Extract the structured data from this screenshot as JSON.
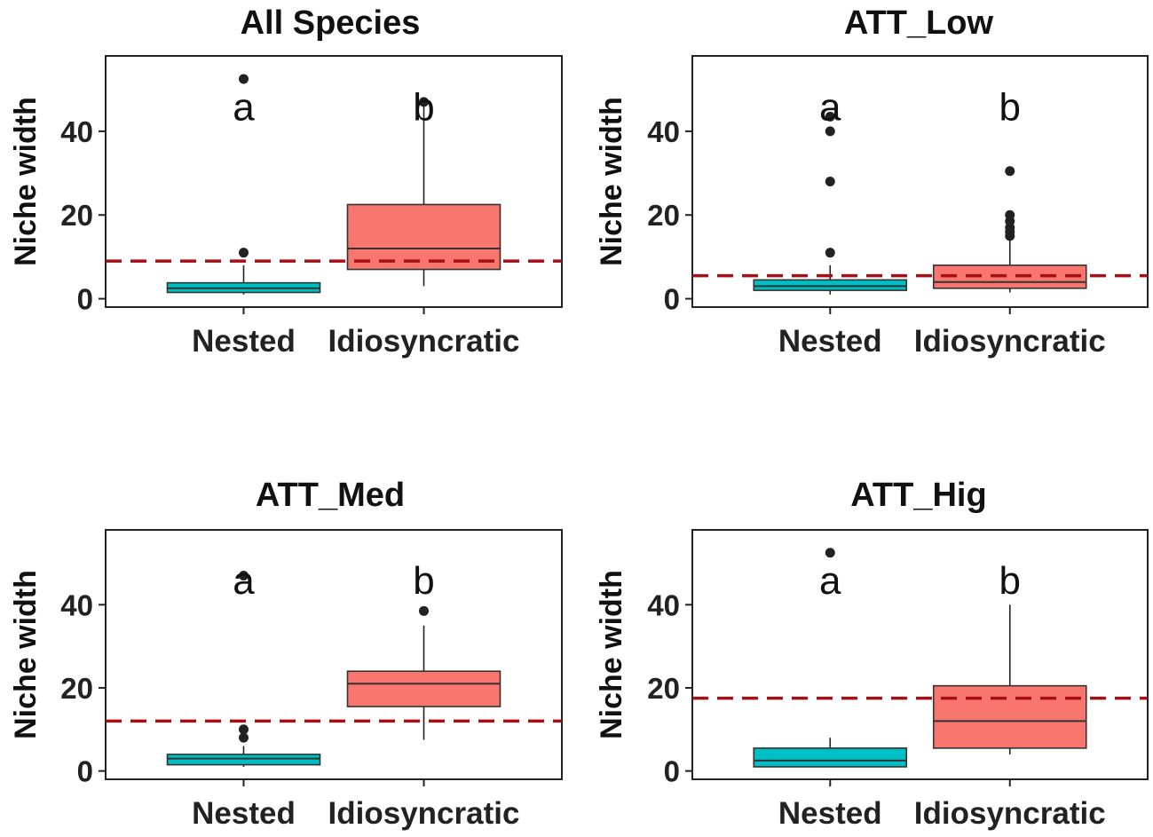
{
  "colors": {
    "nested": "#00BFC4",
    "idiosyncratic": "#F8766D",
    "reference_line": "#A50F15",
    "outline": "#333333"
  },
  "chart_data": [
    {
      "type": "boxplot",
      "title": "All Species",
      "ylabel": "Niche width",
      "xlabel": "",
      "ylim": [
        -2,
        58
      ],
      "yticks": [
        0,
        20,
        40
      ],
      "categories": [
        "Nested",
        "Idiosyncratic"
      ],
      "groups": [
        {
          "name": "Nested",
          "color": "#00BFC4",
          "min": 1,
          "q1": 1.5,
          "median": 2.5,
          "q3": 3.8,
          "max": 8,
          "outliers": [
            11,
            52.5
          ],
          "letter": "a"
        },
        {
          "name": "Idiosyncratic",
          "color": "#F8766D",
          "min": 3,
          "q1": 7,
          "median": 12,
          "q3": 22.5,
          "max": 46,
          "outliers": [
            47
          ],
          "letter": "b"
        }
      ],
      "reference_line": 9
    },
    {
      "type": "boxplot",
      "title": "ATT_Low",
      "ylabel": "Niche width",
      "xlabel": "",
      "ylim": [
        -2,
        58
      ],
      "yticks": [
        0,
        20,
        40
      ],
      "categories": [
        "Nested",
        "Idiosyncratic"
      ],
      "groups": [
        {
          "name": "Nested",
          "color": "#00BFC4",
          "min": 1,
          "q1": 2,
          "median": 3,
          "q3": 4.5,
          "max": 8,
          "outliers": [
            11,
            28,
            40,
            43.5
          ],
          "letter": "a"
        },
        {
          "name": "Idiosyncratic",
          "color": "#F8766D",
          "min": 1.5,
          "q1": 2.5,
          "median": 4,
          "q3": 8,
          "max": 14,
          "outliers": [
            15,
            16,
            17,
            18.5,
            20,
            30.5
          ],
          "letter": "b"
        }
      ],
      "reference_line": 5.5
    },
    {
      "type": "boxplot",
      "title": "ATT_Med",
      "ylabel": "Niche width",
      "xlabel": "",
      "ylim": [
        -2,
        58
      ],
      "yticks": [
        0,
        20,
        40
      ],
      "categories": [
        "Nested",
        "Idiosyncratic"
      ],
      "groups": [
        {
          "name": "Nested",
          "color": "#00BFC4",
          "min": 1,
          "q1": 1.5,
          "median": 3,
          "q3": 4,
          "max": 6,
          "outliers": [
            8,
            10,
            47
          ],
          "letter": "a"
        },
        {
          "name": "Idiosyncratic",
          "color": "#F8766D",
          "min": 7.5,
          "q1": 15.5,
          "median": 21,
          "q3": 24,
          "max": 35,
          "outliers": [
            38.5
          ],
          "letter": "b"
        }
      ],
      "reference_line": 12
    },
    {
      "type": "boxplot",
      "title": "ATT_Hig",
      "ylabel": "Niche width",
      "xlabel": "",
      "ylim": [
        -2,
        58
      ],
      "yticks": [
        0,
        20,
        40
      ],
      "categories": [
        "Nested",
        "Idiosyncratic"
      ],
      "groups": [
        {
          "name": "Nested",
          "color": "#00BFC4",
          "min": 1,
          "q1": 1,
          "median": 2.5,
          "q3": 5.5,
          "max": 8,
          "outliers": [
            52.5
          ],
          "letter": "a"
        },
        {
          "name": "Idiosyncratic",
          "color": "#F8766D",
          "min": 4,
          "q1": 5.5,
          "median": 12,
          "q3": 20.5,
          "max": 40,
          "outliers": [],
          "letter": "b"
        }
      ],
      "reference_line": 17.5
    }
  ]
}
